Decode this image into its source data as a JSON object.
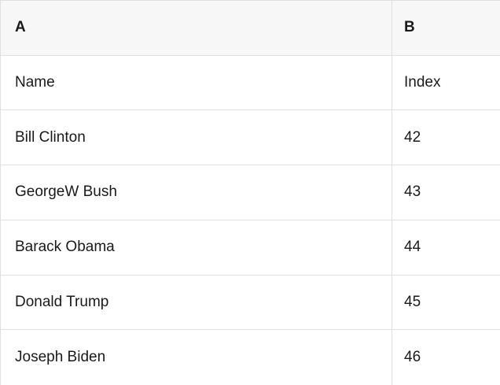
{
  "table": {
    "column_headers": [
      "A",
      "B"
    ],
    "rows": [
      {
        "name": "Name",
        "index": "Index"
      },
      {
        "name": "Bill Clinton",
        "index": "42"
      },
      {
        "name": "GeorgeW Bush",
        "index": "43"
      },
      {
        "name": "Barack Obama",
        "index": "44"
      },
      {
        "name": "Donald Trump",
        "index": "45"
      },
      {
        "name": "Joseph Biden",
        "index": "46"
      }
    ]
  },
  "colors": {
    "header_bg": "#f7f7f7",
    "border": "#e0e0e0",
    "text": "#1a1a1a",
    "row_bg": "#ffffff"
  }
}
